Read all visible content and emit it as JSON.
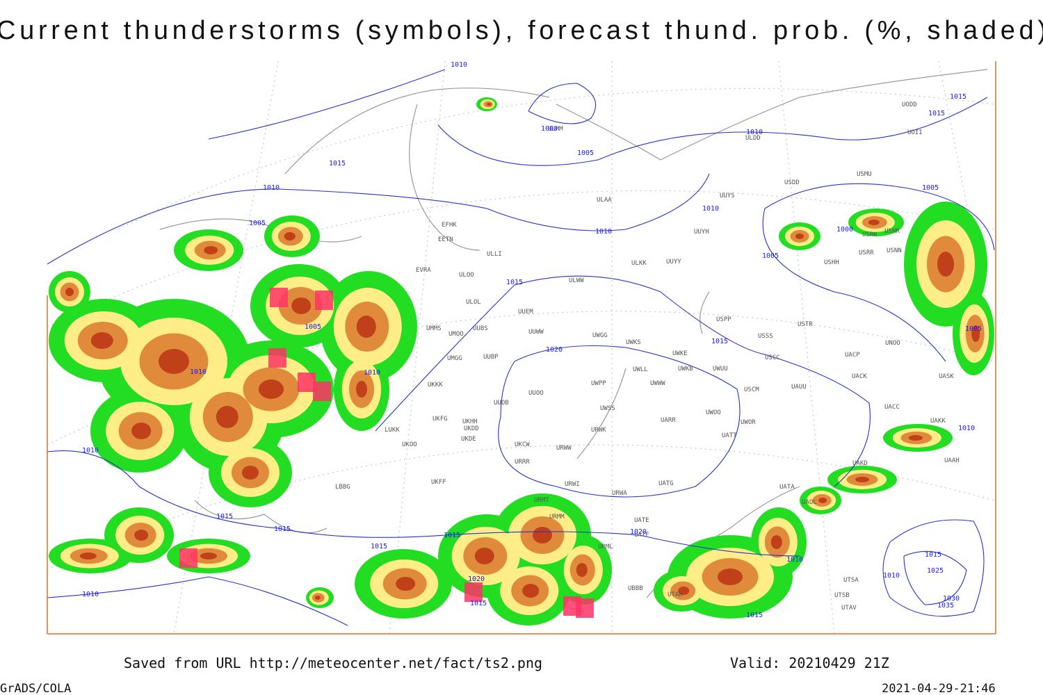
{
  "header": {
    "title": "Current thunderstorms (symbols), forecast thund. prob. (%, shaded)"
  },
  "isobar_labels": [
    "1010",
    "1015",
    "1015",
    "1000",
    "1005",
    "1010",
    "1015",
    "1010",
    "1005",
    "1010",
    "1005",
    "1010",
    "1000",
    "1005",
    "1015",
    "1005",
    "1015",
    "1020",
    "1005",
    "1010",
    "1010",
    "1010",
    "1010",
    "1015",
    "1015",
    "1015",
    "1020",
    "1015",
    "1010",
    "1015",
    "1025",
    "1020",
    "1010",
    "1015",
    "1030",
    "1035",
    "1010",
    "1015"
  ],
  "stations": [
    "ULAA",
    "UUYS",
    "USDD",
    "USMU",
    "UODD",
    "UOII",
    "ULDD",
    "ULMM",
    "UUYH",
    "ULKK",
    "UUYY",
    "ULWW",
    "EFHK",
    "EETN",
    "ULLI",
    "EVRA",
    "ULOO",
    "ULOL",
    "UUEM",
    "UMMS",
    "UMOO",
    "UUBS",
    "UUWW",
    "UWGG",
    "UWKS",
    "USPP",
    "USTR",
    "USSS",
    "UNOO",
    "UWKE",
    "UWKB",
    "UWUU",
    "USCC",
    "UACP",
    "UACK",
    "UASK",
    "UMGG",
    "UUBP",
    "UWLL",
    "UWPP",
    "UWWW",
    "USCM",
    "UAUU",
    "UKKK",
    "UUOO",
    "UUOB",
    "UWSS",
    "UACC",
    "UAKK",
    "UKHH",
    "UKFG",
    "UKDD",
    "UARR",
    "UWOO",
    "UWOR",
    "UATT",
    "LUKK",
    "UKOO",
    "UKDE",
    "UKCW",
    "URWW",
    "URWK",
    "URRR",
    "UAAH",
    "UAKD",
    "UKFF",
    "LBBG",
    "URWI",
    "UATG",
    "URWA",
    "UATA",
    "UAOL",
    "URMT",
    "URMM",
    "UATE",
    "UATF",
    "URML",
    "UBBB",
    "UTAK",
    "UTSA",
    "UTSB",
    "UTAV",
    "USHH",
    "USRR",
    "USNN",
    "USNR",
    "USRK"
  ],
  "footer": {
    "saved": "Saved from URL http://meteocenter.net/fact/ts2.png",
    "valid": "Valid: 20210429 21Z",
    "software": "GrADS/COLA",
    "timestamp": "2021-04-29-21:46"
  }
}
